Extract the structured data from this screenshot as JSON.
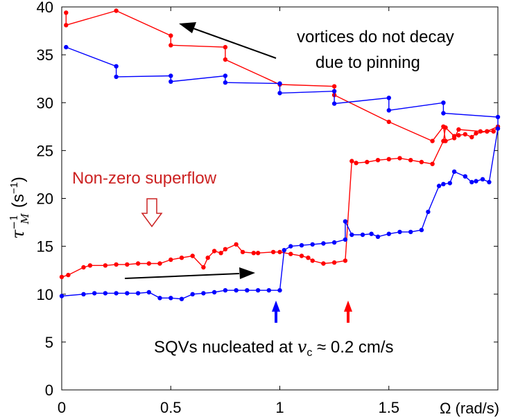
{
  "chart_data": {
    "type": "line",
    "xlim": [
      0,
      2.0
    ],
    "ylim": [
      0,
      40
    ],
    "xticks": [
      0,
      0.5,
      1,
      1.5
    ],
    "xtick_labels": [
      "0",
      "0.5",
      "1",
      "1.5"
    ],
    "yticks": [
      0,
      5,
      10,
      15,
      20,
      25,
      30,
      35,
      40
    ],
    "ytick_labels": [
      "0",
      "5",
      "10",
      "15",
      "20",
      "25",
      "30",
      "35",
      "40"
    ],
    "xlabel": "Ω (rad/s)",
    "ylabel": {
      "base": "τ",
      "sub": "M",
      "sup": "−1",
      "unit": "(s",
      "unit_sup": "−1",
      "unit_close": ")"
    },
    "grid": false,
    "series": [
      {
        "color": "#ff0000",
        "values": [
          [
            0,
            11.8
          ],
          [
            0.03,
            12.0
          ],
          [
            0.1,
            12.8
          ],
          [
            0.13,
            13.0
          ],
          [
            0.2,
            13.0
          ],
          [
            0.25,
            13.1
          ],
          [
            0.3,
            13.1
          ],
          [
            0.35,
            13.2
          ],
          [
            0.4,
            13.2
          ],
          [
            0.45,
            13.2
          ],
          [
            0.5,
            13.6
          ],
          [
            0.55,
            13.8
          ],
          [
            0.6,
            14.0
          ],
          [
            0.65,
            12.8
          ],
          [
            0.67,
            13.8
          ],
          [
            0.7,
            14.5
          ],
          [
            0.73,
            14.3
          ],
          [
            0.75,
            14.7
          ],
          [
            0.8,
            15.2
          ],
          [
            0.83,
            14.4
          ],
          [
            0.88,
            14.3
          ],
          [
            0.9,
            14.3
          ],
          [
            0.97,
            14.4
          ],
          [
            1.0,
            14.4
          ],
          [
            1.05,
            14.2
          ],
          [
            1.1,
            14.0
          ],
          [
            1.13,
            13.8
          ],
          [
            1.15,
            13.5
          ],
          [
            1.2,
            13.2
          ],
          [
            1.25,
            13.3
          ],
          [
            1.3,
            13.5
          ],
          [
            1.33,
            23.9
          ],
          [
            1.35,
            23.7
          ],
          [
            1.4,
            23.8
          ],
          [
            1.45,
            24.0
          ],
          [
            1.5,
            24.1
          ],
          [
            1.55,
            24.2
          ],
          [
            1.6,
            24.0
          ],
          [
            1.65,
            23.8
          ],
          [
            1.7,
            23.6
          ],
          [
            1.75,
            26.0
          ],
          [
            1.76,
            27.4
          ],
          [
            1.8,
            26.5
          ],
          [
            1.82,
            26.6
          ],
          [
            1.85,
            26.7
          ],
          [
            1.88,
            26.4
          ],
          [
            1.9,
            26.8
          ],
          [
            1.95,
            27.0
          ],
          [
            2.0,
            27.5
          ],
          [
            1.98,
            27.0
          ],
          [
            1.95,
            27.0
          ],
          [
            1.92,
            27.0
          ],
          [
            1.82,
            27.2
          ],
          [
            1.8,
            26.3
          ],
          [
            1.76,
            26.0
          ],
          [
            1.75,
            27.5
          ],
          [
            1.7,
            26.0
          ],
          [
            1.5,
            28.0
          ],
          [
            1.25,
            30.8
          ],
          [
            1.25,
            31.7
          ],
          [
            1.0,
            31.9
          ],
          [
            0.75,
            34.5
          ],
          [
            0.75,
            35.8
          ],
          [
            0.5,
            36.0
          ],
          [
            0.5,
            37.0
          ],
          [
            0.25,
            39.6
          ],
          [
            0.02,
            38.1
          ],
          [
            0.02,
            39.4
          ]
        ]
      },
      {
        "color": "#0000ff",
        "values": [
          [
            0,
            9.8
          ],
          [
            0.1,
            10.0
          ],
          [
            0.15,
            10.1
          ],
          [
            0.2,
            10.1
          ],
          [
            0.25,
            10.1
          ],
          [
            0.3,
            10.1
          ],
          [
            0.35,
            10.1
          ],
          [
            0.4,
            10.2
          ],
          [
            0.45,
            9.6
          ],
          [
            0.5,
            9.6
          ],
          [
            0.55,
            9.5
          ],
          [
            0.6,
            10.0
          ],
          [
            0.65,
            10.1
          ],
          [
            0.7,
            10.2
          ],
          [
            0.75,
            10.4
          ],
          [
            0.8,
            10.4
          ],
          [
            0.85,
            10.4
          ],
          [
            0.9,
            10.4
          ],
          [
            0.95,
            10.4
          ],
          [
            1.0,
            10.4
          ],
          [
            1.02,
            14.6
          ],
          [
            1.05,
            15.0
          ],
          [
            1.1,
            15.1
          ],
          [
            1.15,
            15.2
          ],
          [
            1.2,
            15.3
          ],
          [
            1.25,
            15.4
          ],
          [
            1.3,
            15.7
          ],
          [
            1.3,
            17.6
          ],
          [
            1.33,
            16.2
          ],
          [
            1.38,
            16.2
          ],
          [
            1.42,
            16.3
          ],
          [
            1.45,
            16.0
          ],
          [
            1.5,
            16.3
          ],
          [
            1.55,
            16.5
          ],
          [
            1.6,
            16.5
          ],
          [
            1.65,
            16.7
          ],
          [
            1.68,
            18.6
          ],
          [
            1.73,
            21.3
          ],
          [
            1.75,
            21.5
          ],
          [
            1.78,
            21.6
          ],
          [
            1.8,
            22.8
          ],
          [
            1.85,
            22.3
          ],
          [
            1.88,
            21.7
          ],
          [
            1.9,
            21.8
          ],
          [
            1.93,
            22.0
          ],
          [
            1.96,
            21.7
          ],
          [
            2.0,
            27.3
          ],
          [
            2.0,
            28.5
          ],
          [
            1.75,
            28.9
          ],
          [
            1.75,
            30.0
          ],
          [
            1.5,
            29.2
          ],
          [
            1.5,
            30.5
          ],
          [
            1.25,
            29.9
          ],
          [
            1.25,
            31.2
          ],
          [
            1.0,
            31.0
          ],
          [
            1.0,
            32.0
          ],
          [
            0.75,
            32.1
          ],
          [
            0.75,
            32.8
          ],
          [
            0.5,
            32.2
          ],
          [
            0.5,
            32.8
          ],
          [
            0.25,
            32.7
          ],
          [
            0.25,
            33.8
          ],
          [
            0.02,
            35.8
          ]
        ]
      }
    ],
    "annotations": [
      {
        "text": "vortices do not decay",
        "color": "#000000"
      },
      {
        "text": "due to pinning",
        "color": "#000000"
      },
      {
        "text": "Non-zero superflow",
        "color": "#cc2222"
      },
      {
        "text": "SQVs nucleated at ",
        "math": "v",
        "math_sub": "c",
        "rest": " ≈ 0.2 cm/s",
        "color": "#000000"
      }
    ]
  }
}
